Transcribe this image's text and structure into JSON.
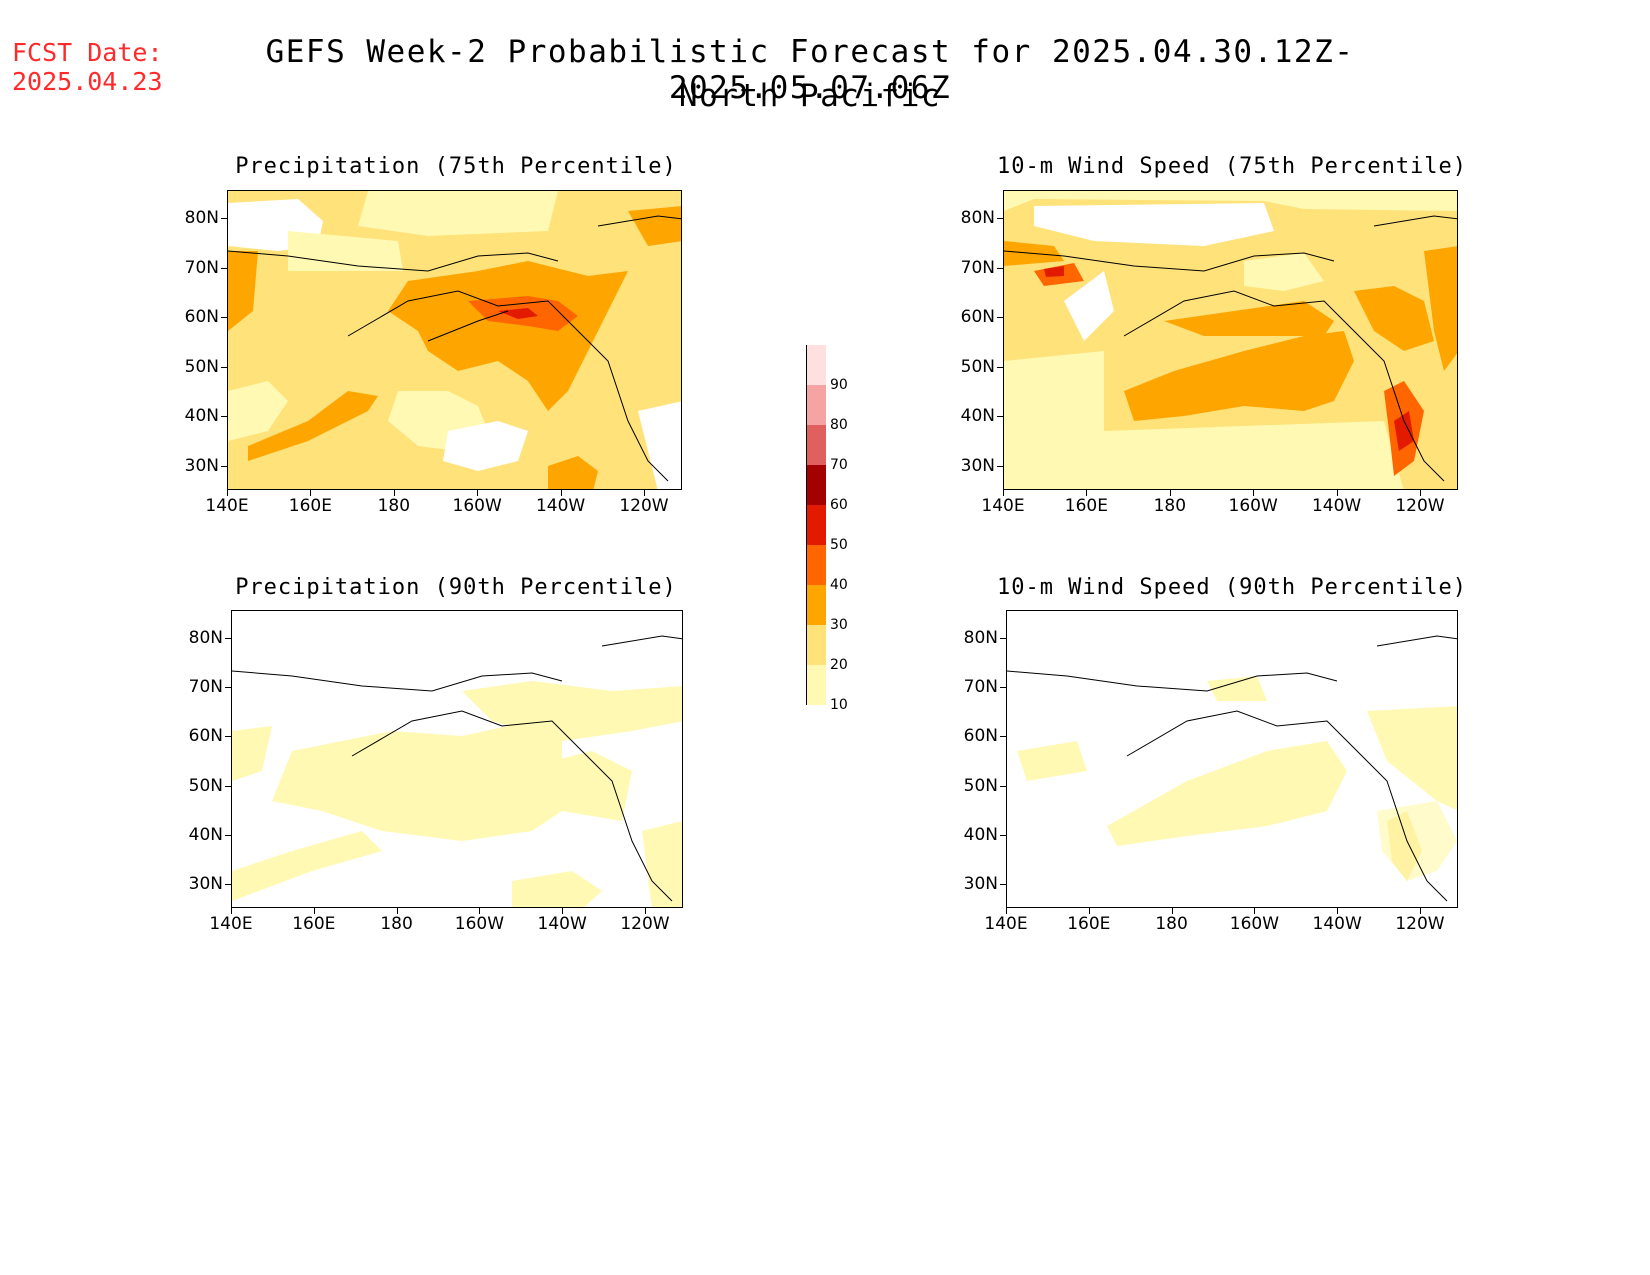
{
  "fcst_label": "FCST Date:",
  "fcst_date": "2025.04.23",
  "title_line1": "GEFS Week-2 Probabilistic Forecast for 2025.04.30.12Z-2025.05.07.06Z",
  "title_line2": "North Pacific",
  "lat_labels": [
    "80N",
    "70N",
    "60N",
    "50N",
    "40N",
    "30N"
  ],
  "lon_labels": [
    "140E",
    "160E",
    "180",
    "160W",
    "140W",
    "120W"
  ],
  "panels": [
    {
      "title": "Precipitation (75th Percentile)"
    },
    {
      "title": "10-m Wind Speed (75th Percentile)"
    },
    {
      "title": "Precipitation (90th Percentile)"
    },
    {
      "title": "10-m Wind Speed (90th Percentile)"
    }
  ],
  "colorbar": {
    "levels": [
      "10",
      "20",
      "30",
      "40",
      "50",
      "60",
      "70",
      "80",
      "90"
    ],
    "colors": [
      "#fff9b3",
      "#ffe27a",
      "#ffa500",
      "#ff6600",
      "#e21a00",
      "#a30000",
      "#e06060",
      "#f5a3a3",
      "#ffe0e0"
    ]
  },
  "chart_data": {
    "type": "heatmap",
    "title": "GEFS Week-2 Probabilistic Forecast for 2025.04.30.12Z-2025.05.07.06Z",
    "subtitle": "North Pacific",
    "xlabel": "",
    "ylabel": "",
    "x_ticks": [
      "140E",
      "160E",
      "180",
      "160W",
      "140W",
      "120W"
    ],
    "y_ticks": [
      "80N",
      "70N",
      "60N",
      "50N",
      "40N",
      "30N"
    ],
    "color_levels": [
      10,
      20,
      30,
      40,
      50,
      60,
      70,
      80,
      90
    ],
    "panels": [
      "Precipitation (75th Percentile)",
      "10-m Wind Speed (75th Percentile)",
      "Precipitation (90th Percentile)",
      "10-m Wind Speed (90th Percentile)"
    ]
  }
}
